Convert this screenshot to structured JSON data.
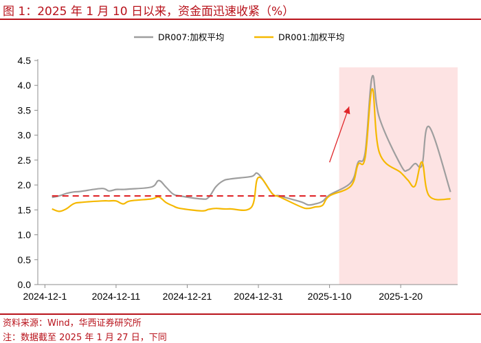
{
  "header": {
    "title": "图 1：2025 年 1 月 10 日以来，资金面迅速收紧（%）"
  },
  "footer": {
    "source": "资料来源：Wind，华西证券研究所",
    "note": "注：数据截至 2025 年 1 月 27 日，下同"
  },
  "colors": {
    "accent": "#b8111a",
    "dr007": "#9e9e9e",
    "dr001": "#f5b800",
    "highlight": "#fde3e3",
    "trend": "#e0262a"
  },
  "chart_data": {
    "type": "line",
    "title": "",
    "xlabel": "",
    "ylabel": "",
    "ylim": [
      0,
      4.5
    ],
    "yticks": [
      0.0,
      0.5,
      1.0,
      1.5,
      2.0,
      2.5,
      3.0,
      3.5,
      4.0,
      4.5
    ],
    "ytick_labels": [
      "0.0",
      "0.5",
      "1.0",
      "1.5",
      "2.0",
      "2.5",
      "3.0",
      "3.5",
      "4.0",
      "4.5"
    ],
    "xticks": [
      "2024-12-01",
      "2024-12-11",
      "2024-12-21",
      "2024-12-31",
      "2025-01-10",
      "2025-01-20"
    ],
    "xtick_labels": [
      "2024-12-1",
      "2024-12-11",
      "2024-12-21",
      "2024-12-31",
      "2025-1-10",
      "2025-1-20"
    ],
    "x_range": [
      "2024-11-30",
      "2025-01-28"
    ],
    "legend_position": "top",
    "grid": false,
    "series": [
      {
        "name": "DR007:加权平均",
        "x": [
          "2024-12-02",
          "2024-12-03",
          "2024-12-04",
          "2024-12-05",
          "2024-12-06",
          "2024-12-09",
          "2024-12-10",
          "2024-12-11",
          "2024-12-12",
          "2024-12-13",
          "2024-12-16",
          "2024-12-17",
          "2024-12-18",
          "2024-12-19",
          "2024-12-20",
          "2024-12-23",
          "2024-12-24",
          "2024-12-25",
          "2024-12-26",
          "2024-12-27",
          "2024-12-30",
          "2024-12-31",
          "2025-01-02",
          "2025-01-03",
          "2025-01-06",
          "2025-01-07",
          "2025-01-08",
          "2025-01-09",
          "2025-01-10",
          "2025-01-13",
          "2025-01-14",
          "2025-01-15",
          "2025-01-16",
          "2025-01-17",
          "2025-01-20",
          "2025-01-21",
          "2025-01-22",
          "2025-01-23",
          "2025-01-24",
          "2025-01-27"
        ],
        "values": [
          1.75,
          1.78,
          1.83,
          1.86,
          1.87,
          1.93,
          1.88,
          1.91,
          1.91,
          1.92,
          1.96,
          2.09,
          1.96,
          1.82,
          1.78,
          1.72,
          1.75,
          1.96,
          2.08,
          2.12,
          2.17,
          2.22,
          1.82,
          1.78,
          1.66,
          1.6,
          1.62,
          1.67,
          1.8,
          2.05,
          2.45,
          2.65,
          4.18,
          3.35,
          2.4,
          2.3,
          2.43,
          2.4,
          3.17,
          1.86
        ]
      },
      {
        "name": "DR001:加权平均",
        "x": [
          "2024-12-02",
          "2024-12-03",
          "2024-12-04",
          "2024-12-05",
          "2024-12-06",
          "2024-12-09",
          "2024-12-10",
          "2024-12-11",
          "2024-12-12",
          "2024-12-13",
          "2024-12-16",
          "2024-12-17",
          "2024-12-18",
          "2024-12-19",
          "2024-12-20",
          "2024-12-23",
          "2024-12-24",
          "2024-12-25",
          "2024-12-26",
          "2024-12-27",
          "2024-12-30",
          "2024-12-31",
          "2025-01-02",
          "2025-01-03",
          "2025-01-06",
          "2025-01-07",
          "2025-01-08",
          "2025-01-09",
          "2025-01-10",
          "2025-01-13",
          "2025-01-14",
          "2025-01-15",
          "2025-01-16",
          "2025-01-17",
          "2025-01-20",
          "2025-01-21",
          "2025-01-22",
          "2025-01-23",
          "2025-01-24",
          "2025-01-27"
        ],
        "values": [
          1.52,
          1.47,
          1.52,
          1.62,
          1.65,
          1.68,
          1.68,
          1.68,
          1.62,
          1.68,
          1.72,
          1.76,
          1.65,
          1.58,
          1.53,
          1.48,
          1.51,
          1.53,
          1.52,
          1.52,
          1.55,
          2.15,
          1.82,
          1.76,
          1.56,
          1.53,
          1.56,
          1.59,
          1.78,
          1.98,
          2.41,
          2.55,
          3.93,
          2.65,
          2.25,
          2.1,
          1.98,
          2.46,
          1.78,
          1.72
        ]
      }
    ],
    "annotations": {
      "highlight_range": [
        "2025-01-10",
        "2025-01-28"
      ],
      "reference_line": {
        "y": 1.78,
        "x_from": "2024-12-02",
        "x_to": "2025-01-10"
      },
      "trend_arrow": {
        "from": [
          "2025-01-10",
          2.4
        ],
        "to": [
          "2025-01-14",
          3.6
        ]
      }
    }
  }
}
